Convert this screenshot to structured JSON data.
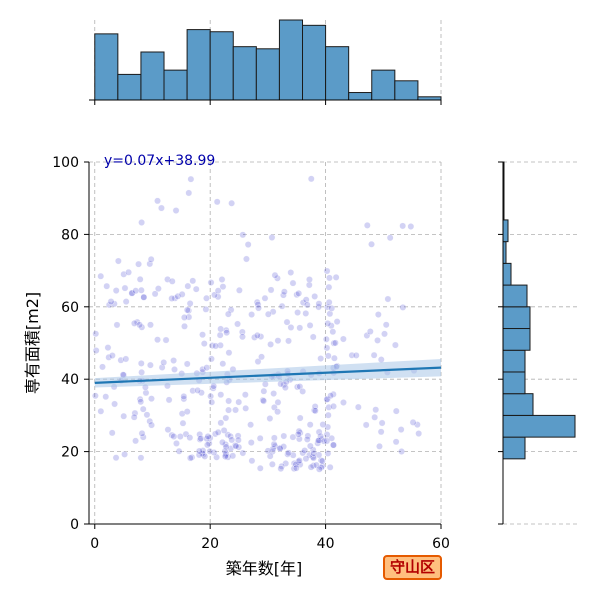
{
  "chart_data": {
    "type": "scatter",
    "subtype": "jointplot",
    "xlabel": "築年数[年]",
    "ylabel": "専有面積[m2]",
    "xlim": [
      -1,
      60
    ],
    "ylim": [
      0,
      100
    ],
    "xticks": [
      0,
      20,
      40,
      60
    ],
    "yticks": [
      0,
      20,
      40,
      60,
      80,
      100
    ],
    "grid": true,
    "grid_style": "dashed",
    "annotation": "y=0.07x+38.99",
    "badge": "守山区",
    "regression": {
      "slope": 0.07,
      "intercept": 38.99,
      "ci_color": "#a9c7e8",
      "line_color": "#1f77b4"
    },
    "point_color": "#3333cc",
    "hist_color": "#5b9bc8",
    "clusters": [
      {
        "x_range": [
          0,
          12
        ],
        "y_range": [
          18,
          72
        ],
        "count": 70
      },
      {
        "x_range": [
          12,
          26
        ],
        "y_range": [
          18,
          68
        ],
        "count": 90
      },
      {
        "x_range": [
          18,
          25
        ],
        "y_range": [
          18,
          26
        ],
        "count": 35
      },
      {
        "x_range": [
          26,
          42
        ],
        "y_range": [
          15,
          70
        ],
        "count": 120
      },
      {
        "x_range": [
          30,
          40
        ],
        "y_range": [
          15,
          26
        ],
        "count": 40
      },
      {
        "x_range": [
          40,
          58
        ],
        "y_range": [
          20,
          65
        ],
        "count": 45
      },
      {
        "x_range": [
          0,
          56
        ],
        "y_range": [
          72,
          98
        ],
        "count": 20
      }
    ],
    "x_hist": {
      "bin_edges": [
        0,
        4,
        8,
        12,
        16,
        20,
        24,
        28,
        32,
        36,
        40,
        44,
        48,
        52,
        56,
        60
      ],
      "heights": [
        62,
        24,
        45,
        28,
        66,
        64,
        50,
        48,
        75,
        70,
        50,
        7,
        28,
        18,
        3
      ]
    },
    "y_hist": {
      "bin_edges": [
        18,
        24,
        30,
        36,
        42,
        48,
        54,
        60,
        66,
        72,
        78,
        84,
        90,
        96,
        100
      ],
      "widths": [
        22,
        72,
        30,
        22,
        22,
        27,
        27,
        24,
        8,
        3,
        5,
        1,
        1,
        1
      ]
    }
  }
}
